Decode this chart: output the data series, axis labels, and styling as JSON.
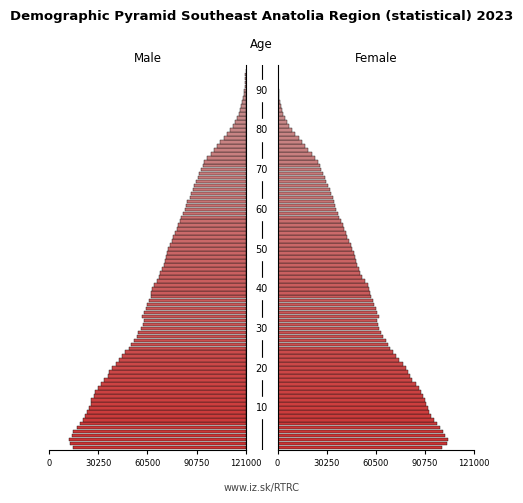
{
  "title": "Demographic Pyramid Southeast Anatolia Region (statistical) 2023",
  "male_label": "Male",
  "female_label": "Female",
  "age_label": "Age",
  "footer": "www.iz.sk/RTRC",
  "xlim": 121000,
  "bar_color_young": "#cd3333",
  "bar_color_old": "#c89090",
  "bar_edge_color": "#111111",
  "bar_linewidth": 0.3,
  "ages": [
    0,
    1,
    2,
    3,
    4,
    5,
    6,
    7,
    8,
    9,
    10,
    11,
    12,
    13,
    14,
    15,
    16,
    17,
    18,
    19,
    20,
    21,
    22,
    23,
    24,
    25,
    26,
    27,
    28,
    29,
    30,
    31,
    32,
    33,
    34,
    35,
    36,
    37,
    38,
    39,
    40,
    41,
    42,
    43,
    44,
    45,
    46,
    47,
    48,
    49,
    50,
    51,
    52,
    53,
    54,
    55,
    56,
    57,
    58,
    59,
    60,
    61,
    62,
    63,
    64,
    65,
    66,
    67,
    68,
    69,
    70,
    71,
    72,
    73,
    74,
    75,
    76,
    77,
    78,
    79,
    80,
    81,
    82,
    83,
    84,
    85,
    86,
    87,
    88,
    89,
    90,
    91,
    92,
    93,
    94,
    95
  ],
  "male": [
    106000,
    108000,
    109000,
    107000,
    106000,
    104000,
    102000,
    100000,
    99000,
    97500,
    96500,
    95500,
    95000,
    93500,
    92500,
    91000,
    89000,
    87000,
    85000,
    84000,
    82500,
    80000,
    78000,
    76000,
    74000,
    72000,
    70500,
    69000,
    67000,
    66000,
    64500,
    63500,
    62500,
    64000,
    62500,
    61500,
    60500,
    59500,
    58500,
    58000,
    57500,
    56500,
    54500,
    53500,
    52500,
    51500,
    50500,
    49500,
    49000,
    48500,
    47500,
    46500,
    45500,
    44500,
    43500,
    42500,
    41500,
    40500,
    39500,
    38500,
    37500,
    36500,
    36000,
    34500,
    33500,
    32500,
    31500,
    30500,
    29500,
    28500,
    27500,
    26500,
    25500,
    23500,
    21500,
    19500,
    17500,
    15500,
    13500,
    11500,
    9500,
    7800,
    6300,
    5200,
    4200,
    3400,
    2600,
    2000,
    1500,
    1050,
    750,
    530,
    370,
    230,
    140,
    75
  ],
  "female": [
    101000,
    104000,
    105000,
    103000,
    102000,
    100000,
    98000,
    96000,
    94500,
    93500,
    92500,
    91500,
    91000,
    89500,
    88500,
    87000,
    85000,
    83000,
    81500,
    80500,
    79000,
    77000,
    75000,
    73000,
    71000,
    69500,
    68000,
    66500,
    65000,
    63500,
    62500,
    62000,
    61500,
    62500,
    61500,
    60500,
    59500,
    58500,
    57500,
    57000,
    56500,
    55500,
    53500,
    52000,
    51000,
    50000,
    49000,
    48000,
    47500,
    47000,
    46000,
    45000,
    44000,
    43000,
    42000,
    41000,
    40000,
    39000,
    38000,
    37000,
    36000,
    35500,
    35000,
    34000,
    33000,
    32000,
    31000,
    30000,
    29000,
    28000,
    27000,
    26000,
    25000,
    23000,
    21000,
    19000,
    17000,
    15000,
    13000,
    10800,
    8800,
    7200,
    5800,
    4600,
    3600,
    2800,
    2100,
    1600,
    1150,
    800,
    550,
    380,
    250,
    155,
    90,
    45
  ],
  "age_ticks": [
    10,
    20,
    30,
    40,
    50,
    60,
    70,
    80,
    90
  ],
  "xtick_vals": [
    0,
    30250,
    60500,
    90750,
    121000
  ]
}
